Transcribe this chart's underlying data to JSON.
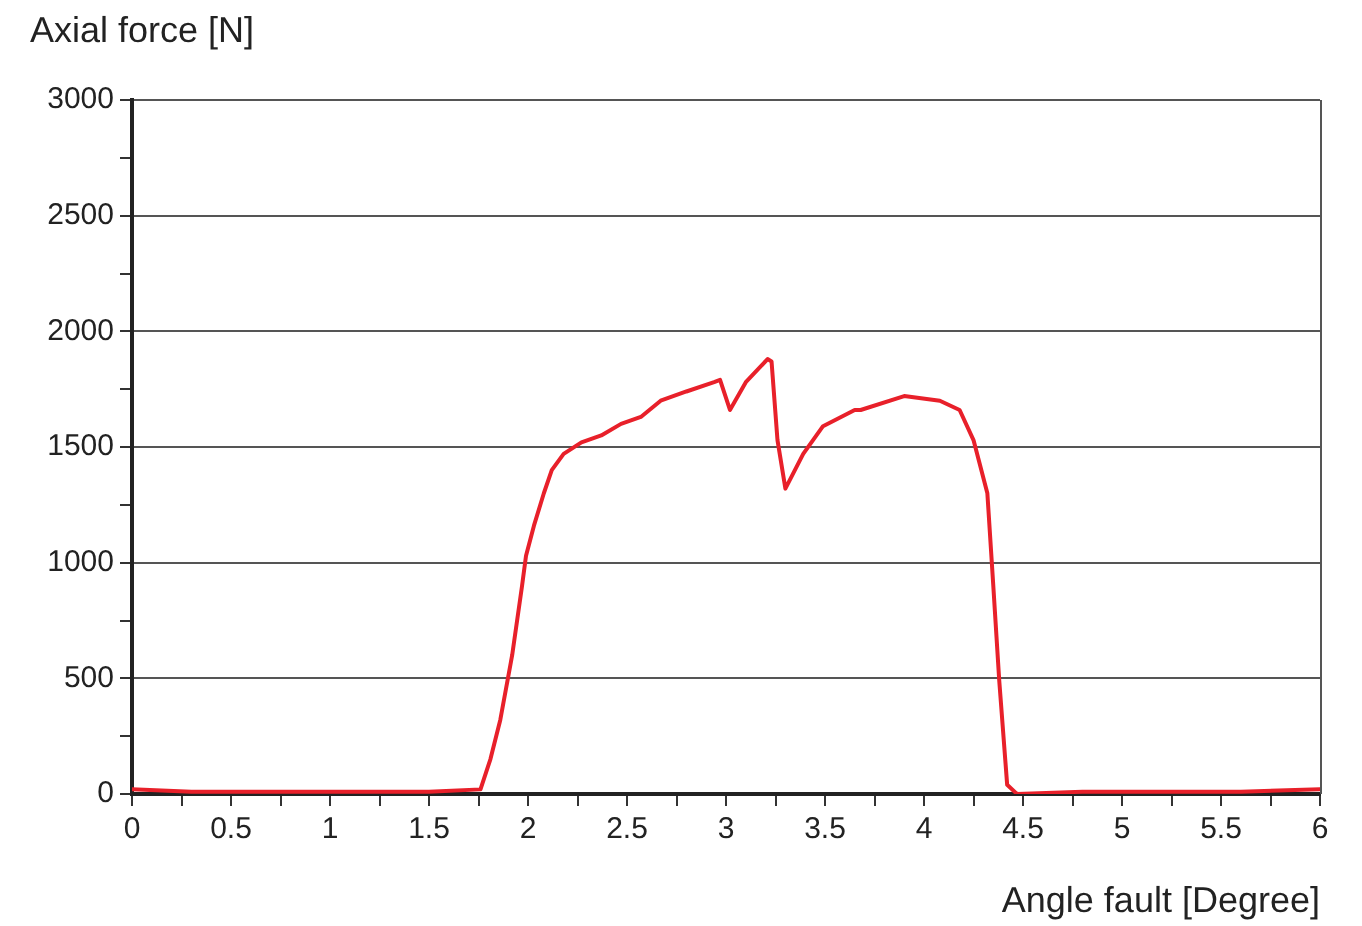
{
  "chart_data": {
    "type": "line",
    "xlabel": "Angle fault [Degree]",
    "ylabel": "Axial force [N]",
    "x": [
      0,
      0.3,
      0.6,
      0.9,
      1.2,
      1.5,
      1.76,
      1.81,
      1.86,
      1.92,
      1.97,
      1.99,
      2.03,
      2.08,
      2.12,
      2.18,
      2.27,
      2.37,
      2.47,
      2.57,
      2.67,
      2.8,
      2.94,
      2.97,
      3.02,
      3.1,
      3.21,
      3.23,
      3.26,
      3.3,
      3.39,
      3.49,
      3.65,
      3.68,
      3.9,
      4.08,
      4.18,
      4.25,
      4.32,
      4.35,
      4.38,
      4.42,
      4.47,
      4.8,
      5.2,
      5.6,
      6
    ],
    "series": [
      {
        "color": "#e8202a",
        "values": [
          20,
          10,
          10,
          10,
          10,
          10,
          20,
          150,
          320,
          600,
          900,
          1030,
          1160,
          1300,
          1400,
          1470,
          1520,
          1550,
          1600,
          1630,
          1700,
          1740,
          1780,
          1790,
          1660,
          1780,
          1880,
          1870,
          1530,
          1320,
          1470,
          1590,
          1660,
          1660,
          1720,
          1700,
          1660,
          1530,
          1300,
          900,
          490,
          40,
          0,
          10,
          10,
          10,
          20
        ]
      }
    ],
    "xlim": [
      0,
      6
    ],
    "ylim": [
      0,
      3000
    ],
    "xticks": [
      0,
      {
        "value": 0.25,
        "label": null
      },
      0.5,
      {
        "value": 0.75,
        "label": null
      },
      1,
      {
        "value": 1.25,
        "label": null
      },
      1.5,
      {
        "value": 1.75,
        "label": null
      },
      2,
      {
        "value": 2.25,
        "label": null
      },
      2.5,
      {
        "value": 2.75,
        "label": null
      },
      3,
      {
        "value": 3.25,
        "label": null
      },
      3.5,
      {
        "value": 3.75,
        "label": null
      },
      4,
      {
        "value": 4.25,
        "label": null
      },
      4.5,
      {
        "value": 4.75,
        "label": null
      },
      5,
      {
        "value": 5.25,
        "label": null
      },
      5.5,
      {
        "value": 5.75,
        "label": null
      },
      6
    ],
    "yticks": [
      0,
      {
        "value": 250,
        "label": null
      },
      500,
      {
        "value": 750,
        "label": null
      },
      1000,
      {
        "value": 1250,
        "label": null
      },
      1500,
      {
        "value": 1750,
        "label": null
      },
      2000,
      {
        "value": 2250,
        "label": null
      },
      2500,
      {
        "value": 2750,
        "label": null
      },
      3000
    ],
    "grid": "y",
    "marker": "none",
    "line_style": "solid",
    "legend": false
  }
}
